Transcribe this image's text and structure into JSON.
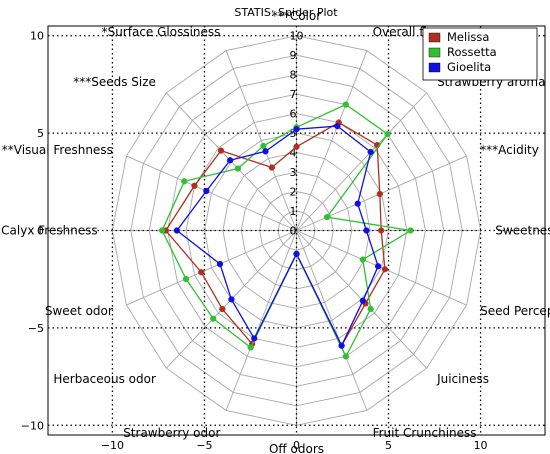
{
  "chart_data": {
    "type": "radar",
    "title": "STATIS: Spider Plot",
    "attributes": [
      {
        "label": "Color",
        "stars": "***"
      },
      {
        "label": "Overall flavor",
        "stars": ""
      },
      {
        "label": "Strawberry aroma",
        "stars": ""
      },
      {
        "label": "Acidity",
        "stars": "***"
      },
      {
        "label": "Sweetness",
        "stars": ""
      },
      {
        "label": "Seed Perception",
        "stars": ""
      },
      {
        "label": "Juiciness",
        "stars": ""
      },
      {
        "label": "Fruit Crunchiness",
        "stars": ""
      },
      {
        "label": "Off odors",
        "stars": ""
      },
      {
        "label": "Strawberry odor",
        "stars": ""
      },
      {
        "label": "Herbaceous odor",
        "stars": ""
      },
      {
        "label": "Sweet odor",
        "stars": ""
      },
      {
        "label": "Calyx Freshness",
        "stars": ""
      },
      {
        "label": "Visual Freshness",
        "stars": "**"
      },
      {
        "label": "Seeds Size",
        "stars": "***"
      },
      {
        "label": "Surface Glossiness",
        "stars": "*"
      }
    ],
    "radial_ticks": [
      "0",
      "1",
      "2",
      "3",
      "4",
      "5",
      "6",
      "7",
      "8",
      "9",
      "10"
    ],
    "x_ticks": [
      "−10",
      "−5",
      "0",
      "5",
      "10"
    ],
    "y_ticks": [
      "10",
      "5",
      "0",
      "−5",
      "−10"
    ],
    "xlim": [
      -13.5,
      13.5
    ],
    "ylim": [
      -10.5,
      10.5
    ],
    "rmax": 10,
    "grid": true,
    "legend_position": "top-right",
    "series": [
      {
        "name": "Melissa",
        "color": "#b03020",
        "values": [
          4.3,
          6.0,
          6.2,
          4.9,
          4.6,
          5.2,
          5.3,
          6.4,
          1.2,
          6.3,
          5.7,
          5.6,
          7.1,
          6.0,
          5.8,
          3.5
        ]
      },
      {
        "name": "Rossetta",
        "color": "#30c030",
        "values": [
          5.3,
          7.0,
          7.0,
          1.8,
          6.2,
          3.9,
          5.7,
          7.0,
          1.2,
          6.5,
          6.4,
          6.5,
          7.3,
          6.6,
          4.5,
          4.7
        ]
      },
      {
        "name": "Gioelita",
        "color": "#1010e0",
        "values": [
          5.2,
          5.8,
          5.7,
          3.6,
          3.8,
          4.8,
          5.1,
          6.4,
          1.2,
          6.0,
          5.0,
          4.5,
          6.5,
          5.3,
          5.1,
          4.4
        ]
      }
    ]
  }
}
